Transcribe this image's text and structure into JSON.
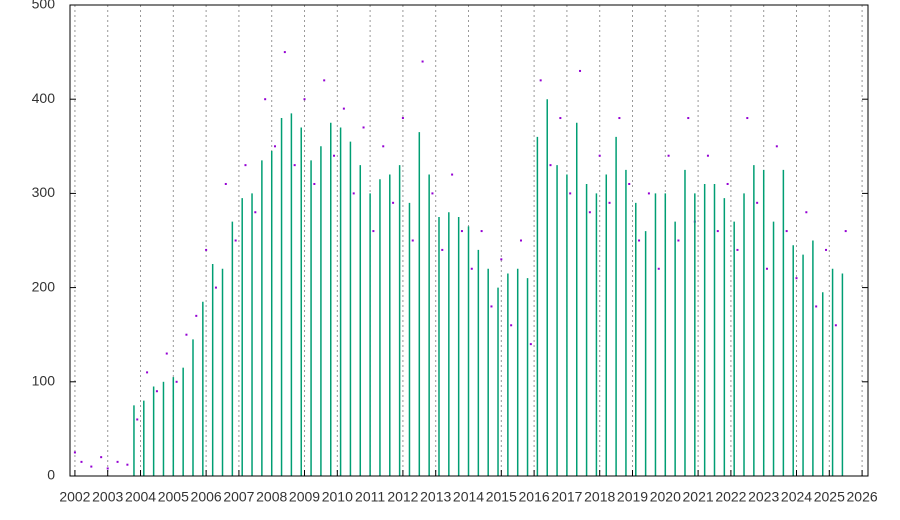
{
  "chart_data": {
    "type": "combo",
    "xlim": [
      2001.85,
      2026.18
    ],
    "ylim": [
      0,
      500
    ],
    "xticks": [
      2002,
      2003,
      2004,
      2005,
      2006,
      2007,
      2008,
      2009,
      2010,
      2011,
      2012,
      2013,
      2014,
      2015,
      2016,
      2017,
      2018,
      2019,
      2020,
      2021,
      2022,
      2023,
      2024,
      2025,
      2026
    ],
    "yticks": [
      0,
      100,
      200,
      300,
      400,
      500
    ],
    "grid": "x",
    "series": [
      {
        "type": "scatter",
        "color": "#9400d3",
        "x": [
          2002.0,
          2002.2,
          2002.5,
          2002.8,
          2003.0,
          2003.3,
          2003.6,
          2003.9,
          2004.2,
          2004.5,
          2004.8,
          2005.1,
          2005.4,
          2005.7,
          2006.0,
          2006.3,
          2006.6,
          2006.9,
          2007.2,
          2007.5,
          2007.8,
          2008.1,
          2008.4,
          2008.7,
          2009.0,
          2009.3,
          2009.6,
          2009.9,
          2010.2,
          2010.5,
          2010.8,
          2011.1,
          2011.4,
          2011.7,
          2012.0,
          2012.3,
          2012.6,
          2012.9,
          2013.2,
          2013.5,
          2013.8,
          2014.1,
          2014.4,
          2014.7,
          2015.0,
          2015.3,
          2015.6,
          2015.9,
          2016.2,
          2016.5,
          2016.8,
          2017.1,
          2017.4,
          2017.7,
          2018.0,
          2018.3,
          2018.6,
          2018.9,
          2019.2,
          2019.5,
          2019.8,
          2020.1,
          2020.4,
          2020.7,
          2020.9,
          2021.3,
          2021.6,
          2021.9,
          2022.2,
          2022.5,
          2022.8,
          2023.1,
          2023.4,
          2023.7,
          2024.0,
          2024.3,
          2024.6,
          2024.9,
          2025.2,
          2025.5
        ],
        "values": [
          25,
          15,
          10,
          20,
          8,
          15,
          12,
          60,
          110,
          90,
          130,
          100,
          150,
          170,
          240,
          200,
          310,
          250,
          330,
          280,
          400,
          350,
          450,
          330,
          400,
          310,
          420,
          340,
          390,
          300,
          370,
          260,
          350,
          290,
          380,
          250,
          440,
          300,
          240,
          320,
          260,
          220,
          260,
          180,
          230,
          160,
          250,
          140,
          420,
          330,
          380,
          300,
          430,
          280,
          340,
          290,
          380,
          310,
          250,
          300,
          220,
          340,
          250,
          380,
          270,
          340,
          260,
          310,
          240,
          380,
          290,
          220,
          350,
          260,
          210,
          280,
          180,
          240,
          160,
          260
        ]
      },
      {
        "type": "bar",
        "color": "#009e73",
        "x": [
          2003.8,
          2004.1,
          2004.4,
          2004.7,
          2005.0,
          2005.3,
          2005.6,
          2005.9,
          2006.2,
          2006.5,
          2006.8,
          2007.1,
          2007.4,
          2007.7,
          2008.0,
          2008.3,
          2008.6,
          2008.9,
          2009.2,
          2009.5,
          2009.8,
          2010.1,
          2010.4,
          2010.7,
          2011.0,
          2011.3,
          2011.6,
          2011.9,
          2012.2,
          2012.5,
          2012.8,
          2013.1,
          2013.4,
          2013.7,
          2014.0,
          2014.3,
          2014.6,
          2014.9,
          2015.2,
          2015.5,
          2015.8,
          2016.1,
          2016.4,
          2016.7,
          2017.0,
          2017.3,
          2017.6,
          2017.9,
          2018.2,
          2018.5,
          2018.8,
          2019.1,
          2019.4,
          2019.7,
          2020.0,
          2020.3,
          2020.6,
          2020.9,
          2021.2,
          2021.5,
          2021.8,
          2022.1,
          2022.4,
          2022.7,
          2023.0,
          2023.3,
          2023.6,
          2023.9,
          2024.2,
          2024.5,
          2024.8,
          2025.1,
          2025.4
        ],
        "values": [
          75,
          80,
          95,
          100,
          105,
          115,
          145,
          185,
          225,
          220,
          270,
          295,
          300,
          335,
          345,
          380,
          385,
          370,
          335,
          350,
          375,
          370,
          355,
          330,
          300,
          315,
          320,
          330,
          290,
          365,
          320,
          275,
          280,
          275,
          265,
          240,
          220,
          200,
          215,
          220,
          210,
          360,
          400,
          330,
          320,
          375,
          310,
          300,
          320,
          360,
          325,
          290,
          260,
          300,
          300,
          270,
          325,
          300,
          310,
          310,
          295,
          270,
          300,
          330,
          325,
          270,
          325,
          245,
          235,
          250,
          195,
          220,
          215
        ]
      }
    ]
  }
}
